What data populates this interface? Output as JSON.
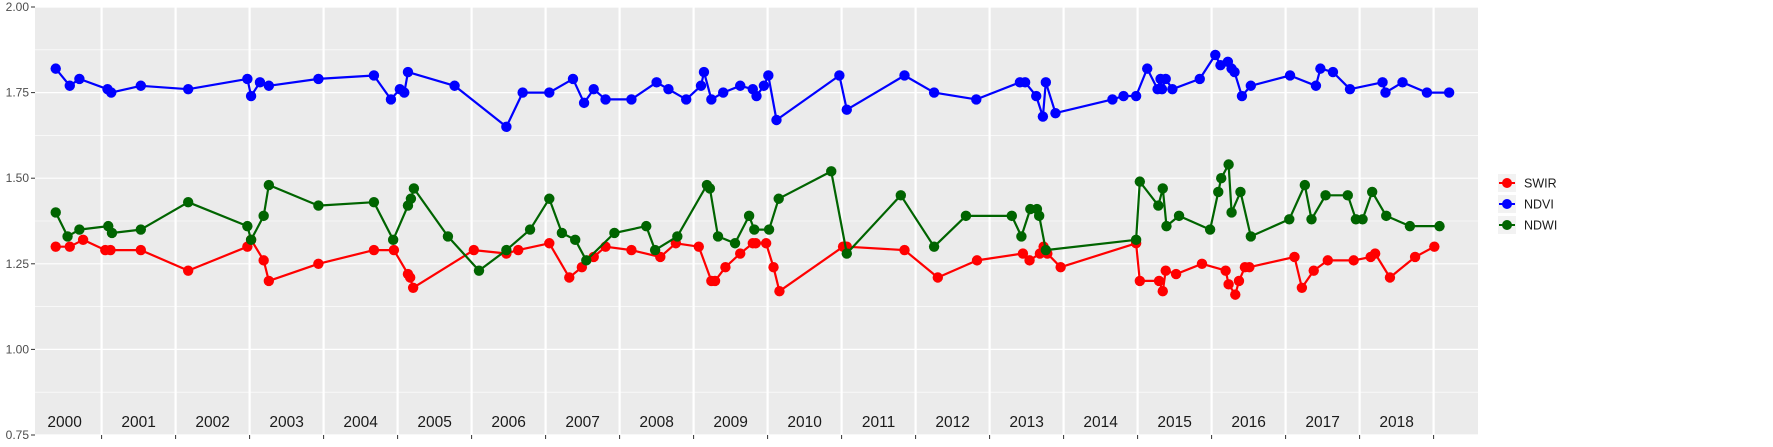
{
  "chart_data": {
    "type": "line",
    "title": "",
    "xlabel": "",
    "ylabel": "",
    "xlim": [
      1999.6,
      2019.1
    ],
    "ylim": [
      0.75,
      2.0
    ],
    "y_ticks": [
      "0.75",
      "1.00",
      "1.25",
      "1.50",
      "1.75",
      "2.00"
    ],
    "y_tick_values": [
      0.75,
      1.0,
      1.25,
      1.5,
      1.75,
      2.0
    ],
    "year_boundaries": [
      2000.5,
      2001.5,
      2002.5,
      2003.5,
      2004.5,
      2005.5,
      2006.5,
      2007.5,
      2008.5,
      2009.5,
      2010.5,
      2011.5,
      2012.5,
      2013.5,
      2014.5,
      2015.5,
      2016.5,
      2017.5,
      2018.5
    ],
    "year_labels": [
      {
        "label": "2000",
        "x": 2000.0
      },
      {
        "label": "2001",
        "x": 2001.0
      },
      {
        "label": "2002",
        "x": 2002.0
      },
      {
        "label": "2003",
        "x": 2003.0
      },
      {
        "label": "2004",
        "x": 2004.0
      },
      {
        "label": "2005",
        "x": 2005.0
      },
      {
        "label": "2006",
        "x": 2006.0
      },
      {
        "label": "2007",
        "x": 2007.0
      },
      {
        "label": "2008",
        "x": 2008.0
      },
      {
        "label": "2009",
        "x": 2009.0
      },
      {
        "label": "2010",
        "x": 2010.0
      },
      {
        "label": "2011",
        "x": 2011.0
      },
      {
        "label": "2012",
        "x": 2012.0
      },
      {
        "label": "2013",
        "x": 2013.0
      },
      {
        "label": "2014",
        "x": 2014.0
      },
      {
        "label": "2015",
        "x": 2015.0
      },
      {
        "label": "2016",
        "x": 2016.0
      },
      {
        "label": "2017",
        "x": 2017.0
      },
      {
        "label": "2018",
        "x": 2018.0
      }
    ],
    "grid": true,
    "legend_position": "right",
    "colors": {
      "panel_bg": "#ebebeb",
      "grid": "#ffffff",
      "axis_text": "#4d4d4d",
      "tick": "#333333"
    },
    "legend": [
      "SWIR",
      "NDVI",
      "NDWI"
    ],
    "series": [
      {
        "name": "SWIR",
        "color": "#ff0000",
        "x": [
          1999.88,
          2000.07,
          2000.25,
          2000.55,
          2000.62,
          2001.03,
          2001.67,
          2002.47,
          2002.52,
          2002.69,
          2002.76,
          2003.43,
          2004.18,
          2004.45,
          2004.64,
          2004.67,
          2004.71,
          2005.53,
          2005.97,
          2006.13,
          2006.55,
          2006.82,
          2006.99,
          2007.15,
          2007.31,
          2007.66,
          2008.05,
          2008.26,
          2008.57,
          2008.74,
          2008.79,
          2008.93,
          2009.13,
          2009.3,
          2009.34,
          2009.48,
          2009.58,
          2009.66,
          2010.52,
          2010.57,
          2011.35,
          2011.8,
          2012.33,
          2012.95,
          2013.04,
          2013.18,
          2013.23,
          2013.28,
          2013.46,
          2014.48,
          2014.53,
          2014.79,
          2014.84,
          2014.88,
          2015.02,
          2015.37,
          2015.69,
          2015.73,
          2015.82,
          2015.87,
          2015.95,
          2016.01,
          2016.62,
          2016.72,
          2016.88,
          2017.07,
          2017.42,
          2017.65,
          2017.71,
          2017.91,
          2018.25,
          2018.51
        ],
        "values": [
          1.3,
          1.3,
          1.32,
          1.29,
          1.29,
          1.29,
          1.23,
          1.3,
          1.32,
          1.26,
          1.2,
          1.25,
          1.29,
          1.29,
          1.22,
          1.21,
          1.18,
          1.29,
          1.28,
          1.29,
          1.31,
          1.21,
          1.24,
          1.27,
          1.3,
          1.29,
          1.27,
          1.31,
          1.3,
          1.2,
          1.2,
          1.24,
          1.28,
          1.31,
          1.31,
          1.31,
          1.24,
          1.17,
          1.3,
          1.3,
          1.29,
          1.21,
          1.26,
          1.28,
          1.26,
          1.28,
          1.3,
          1.28,
          1.24,
          1.31,
          1.2,
          1.2,
          1.17,
          1.23,
          1.22,
          1.25,
          1.23,
          1.19,
          1.16,
          1.2,
          1.24,
          1.24,
          1.27,
          1.18,
          1.23,
          1.26,
          1.26,
          1.27,
          1.28,
          1.21,
          1.27,
          1.3
        ]
      },
      {
        "name": "NDVI",
        "color": "#0000ff",
        "x": [
          1999.88,
          2000.07,
          2000.2,
          2000.58,
          2000.63,
          2001.03,
          2001.67,
          2002.47,
          2002.52,
          2002.64,
          2002.76,
          2003.43,
          2004.18,
          2004.41,
          2004.53,
          2004.59,
          2004.64,
          2005.27,
          2005.97,
          2006.19,
          2006.55,
          2006.87,
          2007.02,
          2007.15,
          2007.31,
          2007.66,
          2008.0,
          2008.16,
          2008.4,
          2008.6,
          2008.64,
          2008.74,
          2008.9,
          2009.13,
          2009.3,
          2009.35,
          2009.45,
          2009.51,
          2009.62,
          2010.47,
          2010.57,
          2011.35,
          2011.75,
          2012.32,
          2012.91,
          2012.98,
          2013.13,
          2013.22,
          2013.26,
          2013.39,
          2014.16,
          2014.31,
          2014.48,
          2014.63,
          2014.77,
          2014.81,
          2014.83,
          2014.88,
          2014.97,
          2015.34,
          2015.55,
          2015.62,
          2015.72,
          2015.77,
          2015.81,
          2015.91,
          2016.03,
          2016.56,
          2016.91,
          2016.97,
          2017.14,
          2017.37,
          2017.81,
          2017.85,
          2018.08,
          2018.41,
          2018.71
        ],
        "values": [
          1.82,
          1.77,
          1.79,
          1.76,
          1.75,
          1.77,
          1.76,
          1.79,
          1.74,
          1.78,
          1.77,
          1.79,
          1.8,
          1.73,
          1.76,
          1.75,
          1.81,
          1.77,
          1.65,
          1.75,
          1.75,
          1.79,
          1.72,
          1.76,
          1.73,
          1.73,
          1.78,
          1.76,
          1.73,
          1.77,
          1.81,
          1.73,
          1.75,
          1.77,
          1.76,
          1.74,
          1.77,
          1.8,
          1.67,
          1.8,
          1.7,
          1.8,
          1.75,
          1.73,
          1.78,
          1.78,
          1.74,
          1.68,
          1.78,
          1.69,
          1.73,
          1.74,
          1.74,
          1.82,
          1.76,
          1.79,
          1.76,
          1.79,
          1.76,
          1.79,
          1.86,
          1.83,
          1.84,
          1.82,
          1.81,
          1.74,
          1.77,
          1.8,
          1.77,
          1.82,
          1.81,
          1.76,
          1.78,
          1.75,
          1.78,
          1.75,
          1.75
        ]
      },
      {
        "name": "NDWI",
        "color": "#006400",
        "x": [
          1999.88,
          2000.04,
          2000.2,
          2000.59,
          2000.64,
          2001.03,
          2001.67,
          2002.47,
          2002.52,
          2002.69,
          2002.76,
          2003.43,
          2004.18,
          2004.44,
          2004.64,
          2004.68,
          2004.72,
          2005.18,
          2005.6,
          2005.97,
          2006.29,
          2006.55,
          2006.72,
          2006.9,
          2007.05,
          2007.43,
          2007.86,
          2007.98,
          2008.28,
          2008.68,
          2008.72,
          2008.83,
          2009.06,
          2009.25,
          2009.32,
          2009.52,
          2009.65,
          2010.36,
          2010.57,
          2011.3,
          2011.75,
          2012.18,
          2012.8,
          2012.93,
          2013.05,
          2013.14,
          2013.17,
          2013.26,
          2014.48,
          2014.53,
          2014.78,
          2014.84,
          2014.89,
          2015.06,
          2015.48,
          2015.59,
          2015.63,
          2015.73,
          2015.77,
          2015.89,
          2016.03,
          2016.55,
          2016.76,
          2016.85,
          2017.04,
          2017.34,
          2017.45,
          2017.54,
          2017.67,
          2017.86,
          2018.18,
          2018.58
        ],
        "values": [
          1.4,
          1.33,
          1.35,
          1.36,
          1.34,
          1.35,
          1.43,
          1.36,
          1.32,
          1.39,
          1.48,
          1.42,
          1.43,
          1.32,
          1.42,
          1.44,
          1.47,
          1.33,
          1.23,
          1.29,
          1.35,
          1.44,
          1.34,
          1.32,
          1.26,
          1.34,
          1.36,
          1.29,
          1.33,
          1.48,
          1.47,
          1.33,
          1.31,
          1.39,
          1.35,
          1.35,
          1.44,
          1.52,
          1.28,
          1.45,
          1.3,
          1.39,
          1.39,
          1.33,
          1.41,
          1.41,
          1.39,
          1.29,
          1.32,
          1.49,
          1.42,
          1.47,
          1.36,
          1.39,
          1.35,
          1.46,
          1.5,
          1.54,
          1.4,
          1.46,
          1.33,
          1.38,
          1.48,
          1.38,
          1.45,
          1.45,
          1.38,
          1.38,
          1.46,
          1.39,
          1.36,
          1.36
        ]
      }
    ]
  }
}
